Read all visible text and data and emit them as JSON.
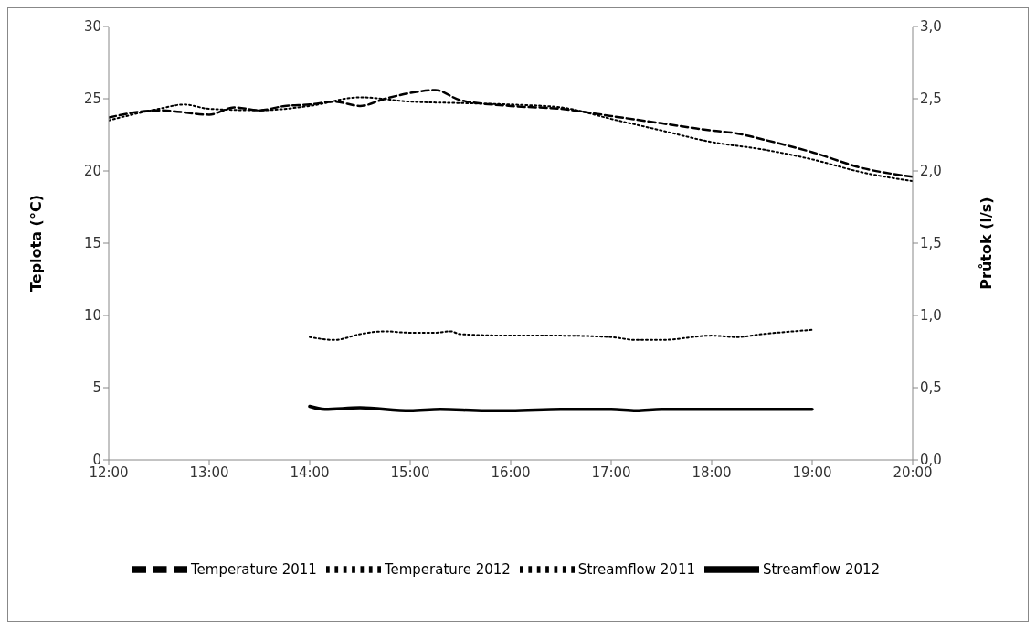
{
  "chart_data": {
    "type": "line",
    "ylabel": "Teplota (°C)",
    "y2label": "Průtok (l/s)",
    "xlim": [
      12,
      20
    ],
    "xticks": [
      {
        "value": 12,
        "label": "12:00"
      },
      {
        "value": 13,
        "label": "13:00"
      },
      {
        "value": 14,
        "label": "14:00"
      },
      {
        "value": 15,
        "label": "15:00"
      },
      {
        "value": 16,
        "label": "16:00"
      },
      {
        "value": 17,
        "label": "17:00"
      },
      {
        "value": 18,
        "label": "18:00"
      },
      {
        "value": 19,
        "label": "19:00"
      },
      {
        "value": 20,
        "label": "20:00"
      }
    ],
    "ylim": [
      0,
      30
    ],
    "yticks": [
      0,
      5,
      10,
      15,
      20,
      25,
      30
    ],
    "y2lim": [
      0,
      3
    ],
    "y2ticks": [
      {
        "value": 0,
        "label": "0,0"
      },
      {
        "value": 0.5,
        "label": "0,5"
      },
      {
        "value": 1,
        "label": "1,0"
      },
      {
        "value": 1.5,
        "label": "1,5"
      },
      {
        "value": 2,
        "label": "2,0"
      },
      {
        "value": 2.5,
        "label": "2,5"
      },
      {
        "value": 3,
        "label": "3,0"
      }
    ],
    "grid": false,
    "legend": "bottom",
    "marker": "none",
    "series": [
      {
        "name": "Temperature 2011",
        "color": "#000000",
        "line_style": "dashed",
        "x": [
          12,
          12.5,
          13,
          13.25,
          13.5,
          13.75,
          14,
          14.25,
          14.5,
          14.75,
          15,
          15.25,
          15.5,
          16,
          16.5,
          17,
          17.5,
          18,
          18.25,
          18.5,
          19,
          19.5,
          20
        ],
        "values": [
          23.7,
          24.2,
          23.9,
          24.4,
          24.2,
          24.5,
          24.6,
          24.8,
          24.5,
          25,
          25.4,
          25.6,
          24.9,
          24.5,
          24.3,
          23.8,
          23.3,
          22.8,
          22.6,
          22.2,
          21.3,
          20.2,
          19.6
        ]
      },
      {
        "name": "Temperature 2012",
        "color": "#000000",
        "line_style": "dotted",
        "x": [
          12,
          12.5,
          12.75,
          13,
          13.5,
          14,
          14.5,
          15,
          15.5,
          16,
          16.5,
          17,
          17.5,
          18,
          18.5,
          19,
          19.5,
          20
        ],
        "values": [
          23.5,
          24.3,
          24.6,
          24.3,
          24.2,
          24.5,
          25.1,
          24.8,
          24.7,
          24.6,
          24.4,
          23.6,
          22.8,
          22,
          21.5,
          20.8,
          19.9,
          19.3
        ]
      },
      {
        "name": "Streamflow 2011",
        "color": "#000000",
        "line_style": "dotted",
        "axis": "y2",
        "x": [
          14,
          14.25,
          14.5,
          14.75,
          15,
          15.25,
          15.4,
          15.5,
          16,
          16.5,
          17,
          17.25,
          17.5,
          18,
          18.25,
          18.5,
          19
        ],
        "values": [
          0.85,
          0.83,
          0.87,
          0.89,
          0.88,
          0.88,
          0.89,
          0.87,
          0.86,
          0.86,
          0.85,
          0.83,
          0.83,
          0.86,
          0.85,
          0.87,
          0.9
        ]
      },
      {
        "name": "Streamflow 2012",
        "color": "#000000",
        "line_style": "solid",
        "axis": "y2",
        "x": [
          14,
          14.15,
          14.5,
          15,
          15.3,
          15.75,
          16,
          16.5,
          17,
          17.25,
          17.5,
          18,
          18.5,
          19
        ],
        "values": [
          0.37,
          0.35,
          0.36,
          0.34,
          0.35,
          0.34,
          0.34,
          0.35,
          0.35,
          0.34,
          0.35,
          0.35,
          0.35,
          0.35
        ]
      }
    ]
  }
}
